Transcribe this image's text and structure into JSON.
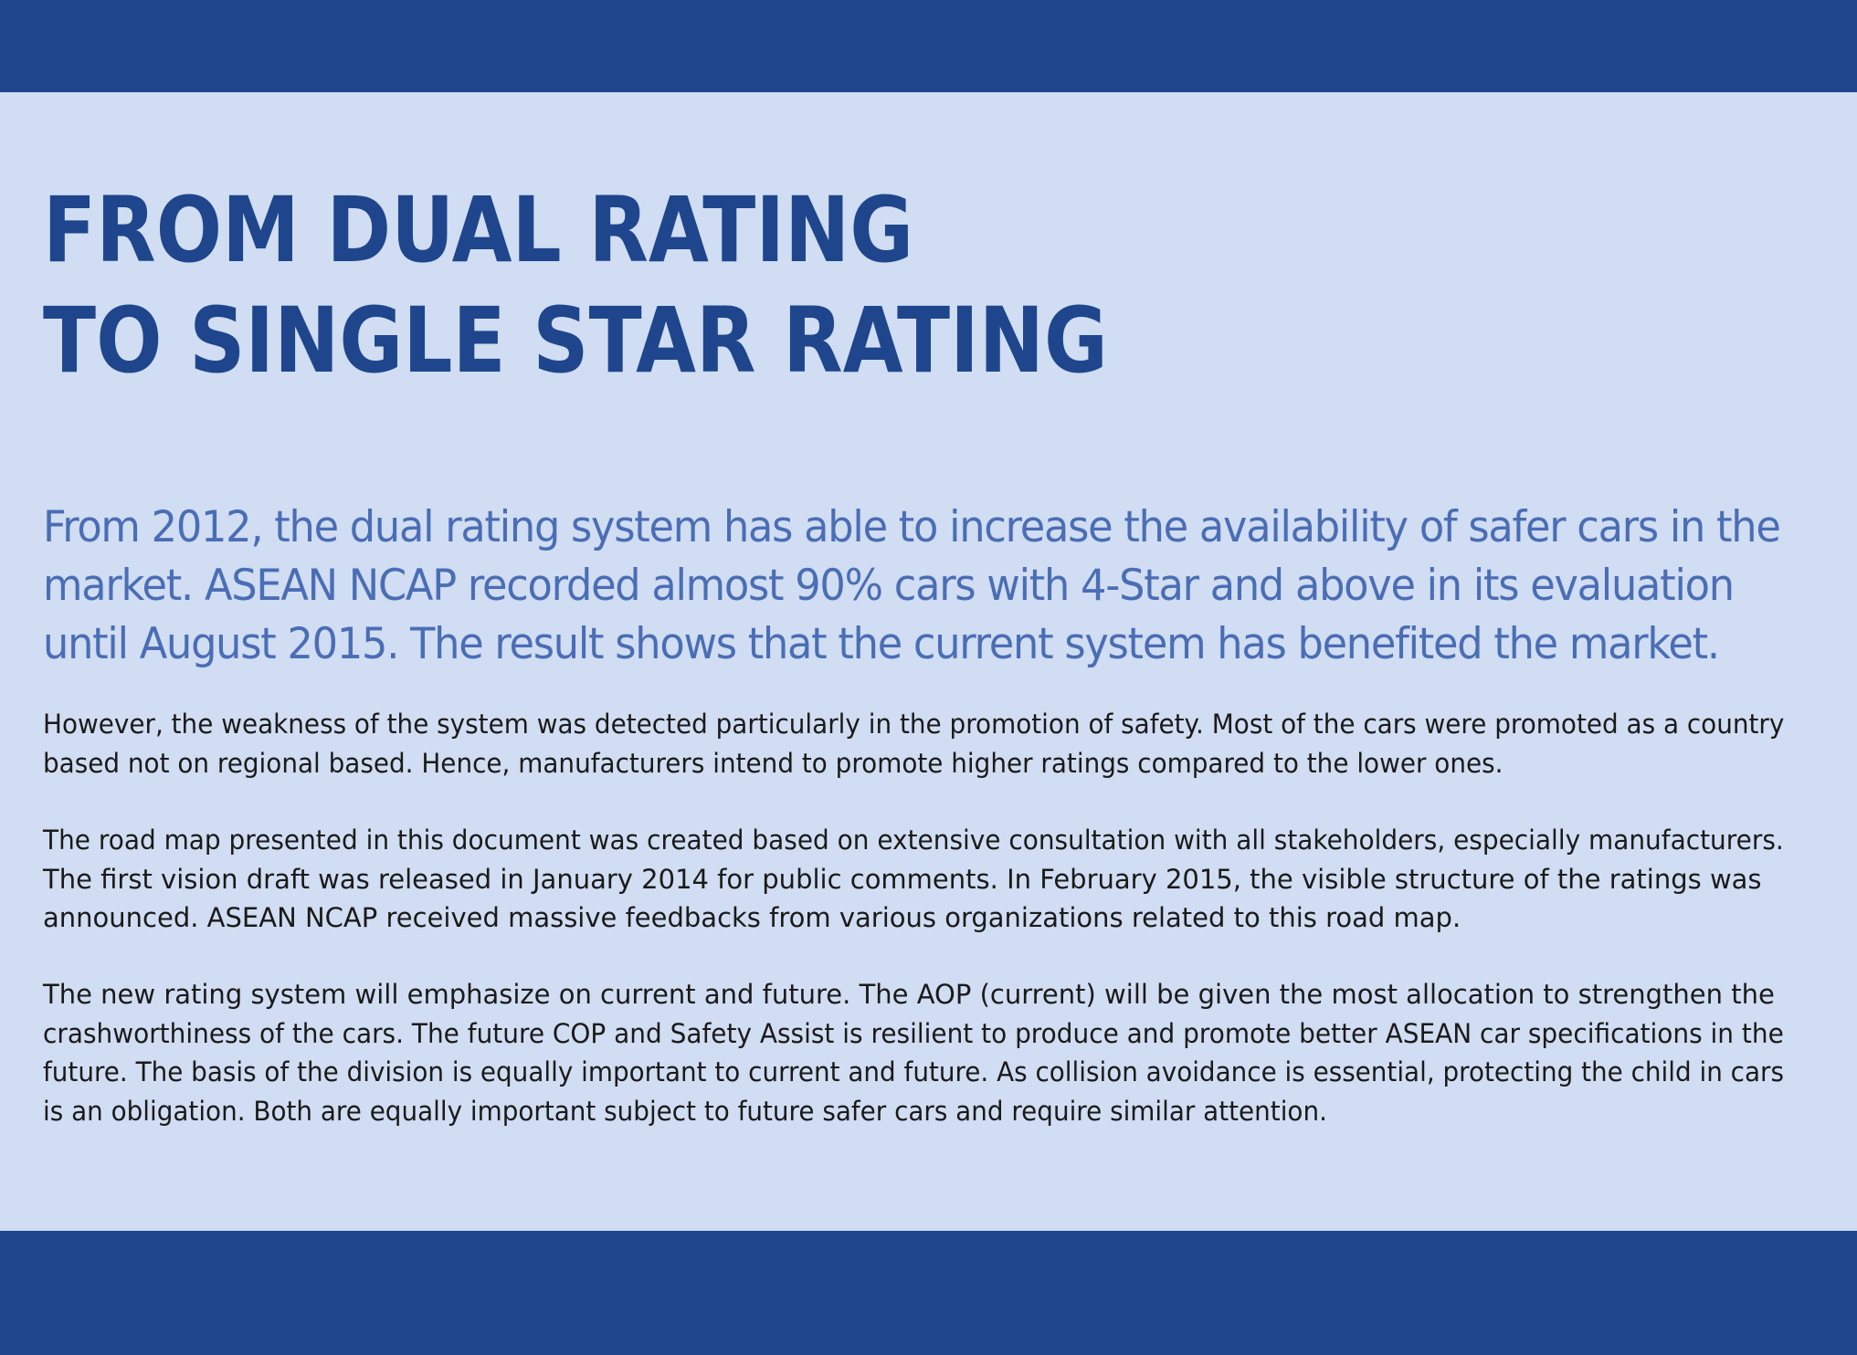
{
  "document": {
    "title_lines": [
      "FROM DUAL RATING",
      "TO SINGLE STAR RATING"
    ],
    "lead_lines": [
      "From 2012, the dual rating system has able to increase the availability of safer cars in the",
      "market. ASEAN NCAP recorded almost 90% cars with 4-Star and above in its evaluation",
      "until August 2015. The result shows that the current system has benefited the market."
    ],
    "paragraphs": [
      {
        "lines": [
          "However, the weakness of the system was detected particularly in the promotion of safety. Most of the cars were promoted as a country",
          "based not on regional based. Hence, manufacturers intend to promote higher ratings compared to the lower ones."
        ]
      },
      {
        "lines": [
          "The road map presented in this document was created based on extensive consultation with all stakeholders, especially manufacturers.",
          "The first vision draft was released in January 2014 for public comments. In February 2015, the visible structure of the ratings was",
          "announced. ASEAN NCAP received massive feedbacks from various organizations related to this road map."
        ]
      },
      {
        "lines": [
          "The new rating system will emphasize on current and future. The AOP (current) will be given the most allocation to strengthen the",
          "crashworthiness of the cars. The future COP and Safety Assist is resilient to produce and promote better ASEAN car specifications in the",
          "future. The basis of the division is equally important to current and future. As collision avoidance is essential, protecting the child in cars",
          "is an obligation. Both are equally important subject to future safer cars and require similar attention."
        ]
      }
    ]
  },
  "colors": {
    "band": "#1f468c",
    "background": "#d0ddf2",
    "title": "#1f468c",
    "lead": "#4a6db5",
    "body": "#1a1a1a"
  }
}
